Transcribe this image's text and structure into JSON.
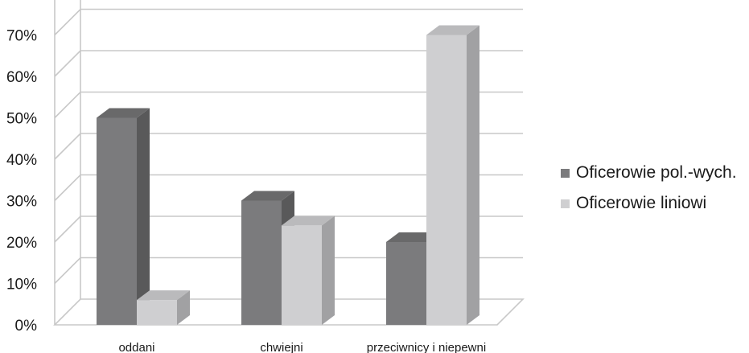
{
  "chart_data": {
    "type": "bar",
    "categories": [
      "oddani",
      "chwiejni",
      "przeciwnicy i niepewni"
    ],
    "series": [
      {
        "name": "Oficerowie pol.-wych.",
        "values": [
          50,
          30,
          20
        ],
        "color": "#7b7b7d"
      },
      {
        "name": "Oficerowie liniowi",
        "values": [
          6,
          24,
          70
        ],
        "color": "#cfcfd1"
      }
    ],
    "yticks": [
      "0%",
      "10%",
      "20%",
      "30%",
      "40%",
      "50%",
      "60%",
      "70%"
    ],
    "ylim": [
      0,
      80
    ],
    "grid": true,
    "legend": "right"
  }
}
